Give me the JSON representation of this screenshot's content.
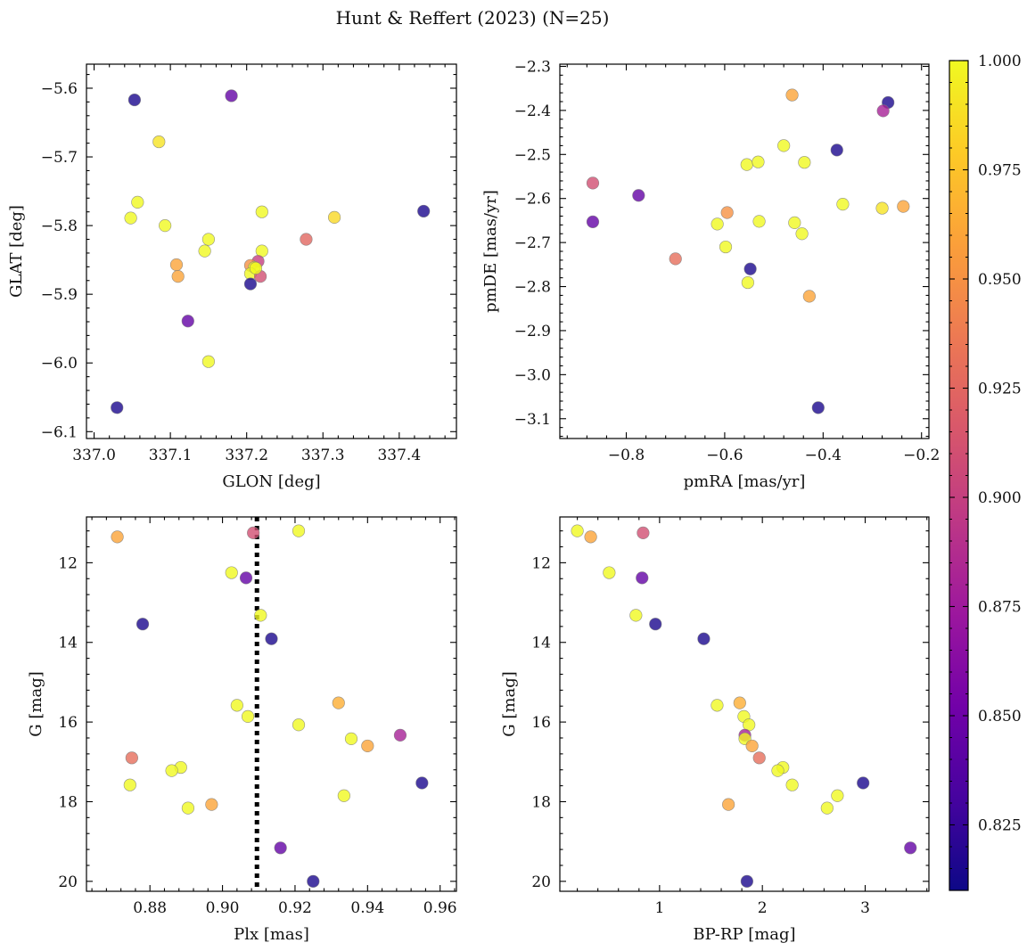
{
  "title": "Hunt & Reffert (2023) (N=25)",
  "colors": {
    "cmap": [
      "#0d0887",
      "#46039f",
      "#7201a8",
      "#9c179e",
      "#bd3786",
      "#d8576b",
      "#ed7953",
      "#fb9f3a",
      "#fdca26",
      "#f0f921"
    ],
    "point_alpha": 0.8,
    "vline": "#000000"
  },
  "colorbar": {
    "range": [
      0.81,
      1.0
    ],
    "ticks": [
      0.825,
      0.85,
      0.875,
      0.9,
      0.925,
      0.95,
      0.975,
      1.0
    ],
    "tick_labels": [
      "0.825",
      "0.850",
      "0.875",
      "0.900",
      "0.925",
      "0.950",
      "0.975",
      "1.000"
    ]
  },
  "chart_data": [
    {
      "type": "scatter",
      "xlabel": "GLON [deg]",
      "ylabel": "GLAT [deg]",
      "xlim": [
        336.99,
        337.475
      ],
      "ylim": [
        -6.11,
        -5.565
      ],
      "xticks": [
        337.0,
        337.1,
        337.2,
        337.3,
        337.4
      ],
      "xtick_labels": [
        "337.0",
        "337.1",
        "337.2",
        "337.3",
        "337.4"
      ],
      "yticks": [
        -6.1,
        -6.0,
        -5.9,
        -5.8,
        -5.7,
        -5.6
      ],
      "ytick_labels": [
        "−6.1",
        "−6.0",
        "−5.9",
        "−5.8",
        "−5.7",
        "−5.6"
      ],
      "y_inverted": false,
      "points": [
        {
          "x": 337.053,
          "y": -5.617,
          "c": 0.815
        },
        {
          "x": 337.18,
          "y": -5.611,
          "c": 0.845
        },
        {
          "x": 337.085,
          "y": -5.678,
          "c": 0.99
        },
        {
          "x": 337.057,
          "y": -5.766,
          "c": 1.0
        },
        {
          "x": 337.048,
          "y": -5.789,
          "c": 1.0
        },
        {
          "x": 337.093,
          "y": -5.8,
          "c": 1.0
        },
        {
          "x": 337.432,
          "y": -5.779,
          "c": 0.815
        },
        {
          "x": 337.22,
          "y": -5.78,
          "c": 1.0
        },
        {
          "x": 337.315,
          "y": -5.788,
          "c": 0.985
        },
        {
          "x": 337.278,
          "y": -5.82,
          "c": 0.925
        },
        {
          "x": 337.15,
          "y": -5.82,
          "c": 1.0
        },
        {
          "x": 337.145,
          "y": -5.837,
          "c": 1.0
        },
        {
          "x": 337.22,
          "y": -5.837,
          "c": 1.0
        },
        {
          "x": 337.108,
          "y": -5.857,
          "c": 0.96
        },
        {
          "x": 337.215,
          "y": -5.852,
          "c": 0.9
        },
        {
          "x": 337.205,
          "y": -5.858,
          "c": 0.95
        },
        {
          "x": 337.21,
          "y": -5.861,
          "c": 1.0
        },
        {
          "x": 337.205,
          "y": -5.87,
          "c": 1.0
        },
        {
          "x": 337.11,
          "y": -5.874,
          "c": 0.96
        },
        {
          "x": 337.218,
          "y": -5.874,
          "c": 0.91
        },
        {
          "x": 337.205,
          "y": -5.885,
          "c": 0.815
        },
        {
          "x": 337.123,
          "y": -5.939,
          "c": 0.845
        },
        {
          "x": 337.15,
          "y": -5.998,
          "c": 1.0
        },
        {
          "x": 337.03,
          "y": -6.065,
          "c": 0.815
        },
        {
          "x": 337.212,
          "y": -5.862,
          "c": 1.0
        }
      ]
    },
    {
      "type": "scatter",
      "xlabel": "pmRA [mas/yr]",
      "ylabel": "pmDE [mas/yr]",
      "xlim": [
        -0.935,
        -0.185
      ],
      "ylim": [
        -3.145,
        -2.295
      ],
      "xticks": [
        -0.8,
        -0.6,
        -0.4,
        -0.2
      ],
      "xtick_labels": [
        "−0.8",
        "−0.6",
        "−0.4",
        "−0.2"
      ],
      "yticks": [
        -3.1,
        -3.0,
        -2.9,
        -2.8,
        -2.7,
        -2.6,
        -2.5,
        -2.4,
        -2.3
      ],
      "ytick_labels": [
        "−3.1",
        "−3.0",
        "−2.9",
        "−2.8",
        "−2.7",
        "−2.6",
        "−2.5",
        "−2.4",
        "−2.3"
      ],
      "y_inverted": false,
      "points": [
        {
          "x": -0.463,
          "y": -2.365,
          "c": 0.96
        },
        {
          "x": -0.268,
          "y": -2.382,
          "c": 0.815
        },
        {
          "x": -0.278,
          "y": -2.401,
          "c": 0.88
        },
        {
          "x": -0.372,
          "y": -2.49,
          "c": 0.815
        },
        {
          "x": -0.48,
          "y": -2.48,
          "c": 1.0
        },
        {
          "x": -0.555,
          "y": -2.523,
          "c": 1.0
        },
        {
          "x": -0.532,
          "y": -2.517,
          "c": 1.0
        },
        {
          "x": -0.438,
          "y": -2.518,
          "c": 1.0
        },
        {
          "x": -0.868,
          "y": -2.565,
          "c": 0.91
        },
        {
          "x": -0.775,
          "y": -2.593,
          "c": 0.845
        },
        {
          "x": -0.36,
          "y": -2.613,
          "c": 1.0
        },
        {
          "x": -0.28,
          "y": -2.622,
          "c": 0.99
        },
        {
          "x": -0.237,
          "y": -2.618,
          "c": 0.96
        },
        {
          "x": -0.595,
          "y": -2.632,
          "c": 0.95
        },
        {
          "x": -0.868,
          "y": -2.653,
          "c": 0.845
        },
        {
          "x": -0.53,
          "y": -2.652,
          "c": 1.0
        },
        {
          "x": -0.458,
          "y": -2.655,
          "c": 1.0
        },
        {
          "x": -0.615,
          "y": -2.658,
          "c": 1.0
        },
        {
          "x": -0.443,
          "y": -2.68,
          "c": 1.0
        },
        {
          "x": -0.598,
          "y": -2.71,
          "c": 1.0
        },
        {
          "x": -0.7,
          "y": -2.737,
          "c": 0.93
        },
        {
          "x": -0.548,
          "y": -2.76,
          "c": 0.815
        },
        {
          "x": -0.553,
          "y": -2.791,
          "c": 1.0
        },
        {
          "x": -0.428,
          "y": -2.822,
          "c": 0.96
        },
        {
          "x": -0.41,
          "y": -3.075,
          "c": 0.815
        }
      ]
    },
    {
      "type": "scatter",
      "xlabel": "Plx [mas]",
      "ylabel": "G [mag]",
      "xlim": [
        0.8625,
        0.9645
      ],
      "ylim": [
        20.25,
        10.85
      ],
      "xticks": [
        0.88,
        0.9,
        0.92,
        0.94,
        0.96
      ],
      "xtick_labels": [
        "0.88",
        "0.90",
        "0.92",
        "0.94",
        "0.96"
      ],
      "yticks": [
        12,
        14,
        16,
        18,
        20
      ],
      "ytick_labels": [
        "12",
        "14",
        "16",
        "18",
        "20"
      ],
      "y_inverted": true,
      "vline": 0.9095,
      "points": [
        {
          "x": 0.871,
          "y": 11.35,
          "c": 0.96
        },
        {
          "x": 0.9085,
          "y": 11.25,
          "c": 0.91
        },
        {
          "x": 0.921,
          "y": 11.2,
          "c": 1.0
        },
        {
          "x": 0.9025,
          "y": 12.25,
          "c": 1.0
        },
        {
          "x": 0.9065,
          "y": 12.38,
          "c": 0.845
        },
        {
          "x": 0.9105,
          "y": 13.32,
          "c": 1.0
        },
        {
          "x": 0.878,
          "y": 13.54,
          "c": 0.815
        },
        {
          "x": 0.9135,
          "y": 13.91,
          "c": 0.815
        },
        {
          "x": 0.904,
          "y": 15.58,
          "c": 1.0
        },
        {
          "x": 0.932,
          "y": 15.52,
          "c": 0.965
        },
        {
          "x": 0.907,
          "y": 15.86,
          "c": 1.0
        },
        {
          "x": 0.921,
          "y": 16.07,
          "c": 1.0
        },
        {
          "x": 0.9355,
          "y": 16.42,
          "c": 1.0
        },
        {
          "x": 0.949,
          "y": 16.33,
          "c": 0.88
        },
        {
          "x": 0.94,
          "y": 16.6,
          "c": 0.96
        },
        {
          "x": 0.875,
          "y": 16.9,
          "c": 0.93
        },
        {
          "x": 0.8885,
          "y": 17.14,
          "c": 1.0
        },
        {
          "x": 0.886,
          "y": 17.22,
          "c": 1.0
        },
        {
          "x": 0.8745,
          "y": 17.58,
          "c": 1.0
        },
        {
          "x": 0.955,
          "y": 17.53,
          "c": 0.815
        },
        {
          "x": 0.9335,
          "y": 17.85,
          "c": 1.0
        },
        {
          "x": 0.897,
          "y": 18.07,
          "c": 0.96
        },
        {
          "x": 0.8905,
          "y": 18.16,
          "c": 1.0
        },
        {
          "x": 0.916,
          "y": 19.16,
          "c": 0.845
        },
        {
          "x": 0.925,
          "y": 20.0,
          "c": 0.815
        }
      ]
    },
    {
      "type": "scatter",
      "xlabel": "BP-RP [mag]",
      "ylabel": "G [mag]",
      "xlim": [
        0.03,
        3.62
      ],
      "ylim": [
        20.25,
        10.85
      ],
      "xticks": [
        1,
        2,
        3
      ],
      "xtick_labels": [
        "1",
        "2",
        "3"
      ],
      "yticks": [
        12,
        14,
        16,
        18,
        20
      ],
      "ytick_labels": [
        "12",
        "14",
        "16",
        "18",
        "20"
      ],
      "y_inverted": true,
      "points": [
        {
          "x": 0.2,
          "y": 11.2,
          "c": 1.0
        },
        {
          "x": 0.33,
          "y": 11.35,
          "c": 0.96
        },
        {
          "x": 0.84,
          "y": 11.25,
          "c": 0.91
        },
        {
          "x": 0.51,
          "y": 12.25,
          "c": 1.0
        },
        {
          "x": 0.83,
          "y": 12.38,
          "c": 0.845
        },
        {
          "x": 0.77,
          "y": 13.32,
          "c": 1.0
        },
        {
          "x": 0.96,
          "y": 13.54,
          "c": 0.815
        },
        {
          "x": 1.43,
          "y": 13.91,
          "c": 0.815
        },
        {
          "x": 1.56,
          "y": 15.58,
          "c": 1.0
        },
        {
          "x": 1.78,
          "y": 15.52,
          "c": 0.965
        },
        {
          "x": 1.82,
          "y": 15.86,
          "c": 1.0
        },
        {
          "x": 1.87,
          "y": 16.07,
          "c": 1.0
        },
        {
          "x": 1.83,
          "y": 16.33,
          "c": 0.88
        },
        {
          "x": 1.83,
          "y": 16.42,
          "c": 1.0
        },
        {
          "x": 1.9,
          "y": 16.6,
          "c": 0.96
        },
        {
          "x": 1.97,
          "y": 16.9,
          "c": 0.93
        },
        {
          "x": 2.2,
          "y": 17.14,
          "c": 1.0
        },
        {
          "x": 2.15,
          "y": 17.22,
          "c": 1.0
        },
        {
          "x": 2.29,
          "y": 17.58,
          "c": 1.0
        },
        {
          "x": 2.98,
          "y": 17.53,
          "c": 0.815
        },
        {
          "x": 2.73,
          "y": 17.85,
          "c": 1.0
        },
        {
          "x": 1.67,
          "y": 18.07,
          "c": 0.96
        },
        {
          "x": 2.63,
          "y": 18.16,
          "c": 1.0
        },
        {
          "x": 3.44,
          "y": 19.16,
          "c": 0.845
        },
        {
          "x": 1.85,
          "y": 20.0,
          "c": 0.815
        }
      ]
    }
  ]
}
